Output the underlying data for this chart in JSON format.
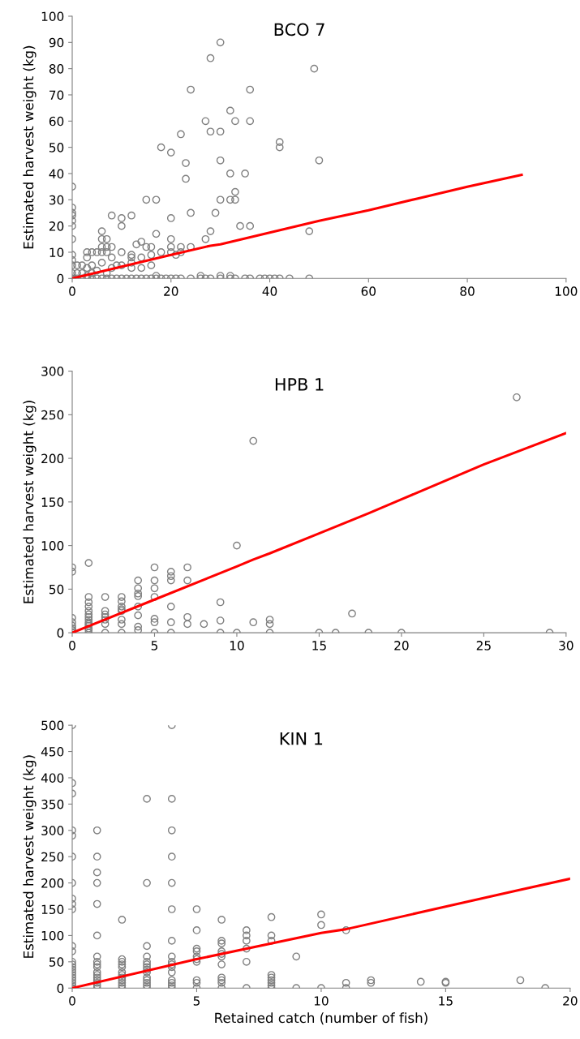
{
  "chart_data": [
    {
      "type": "scatter",
      "title": "BCO 7",
      "ylabel": "Estimated harvest weight (kg)",
      "xlim": [
        0,
        100
      ],
      "xticks": [
        0,
        20,
        40,
        60,
        80,
        100
      ],
      "ylim": [
        0,
        100
      ],
      "yticks": [
        0,
        10,
        20,
        30,
        40,
        50,
        60,
        70,
        80,
        90,
        100
      ],
      "grid": false,
      "series": [
        {
          "marker": "circle",
          "color": "#808080",
          "x": [
            0,
            0,
            0,
            0,
            0,
            0,
            0,
            0,
            0,
            0,
            0,
            0,
            28,
            30,
            49,
            24,
            36,
            32,
            27,
            33,
            36,
            28,
            30,
            22,
            42,
            42,
            18,
            20,
            30,
            50,
            23,
            32,
            35,
            23,
            33,
            32,
            33,
            30,
            15,
            17,
            8,
            12,
            10,
            20,
            24,
            29,
            10,
            34,
            36,
            6,
            28,
            48,
            17,
            27,
            20,
            6,
            7,
            14,
            13,
            20,
            22,
            24,
            16,
            6,
            7,
            8,
            15,
            4,
            5,
            6,
            7,
            3,
            10,
            18,
            20,
            22,
            12,
            16,
            21,
            8,
            12,
            14,
            3,
            12,
            6,
            16,
            10,
            9,
            4,
            2,
            1,
            8,
            14,
            12,
            3,
            5,
            1,
            2,
            4,
            7,
            3,
            1,
            2,
            3,
            4,
            5,
            6,
            7,
            8,
            9,
            10,
            11,
            12,
            13,
            14,
            15,
            16,
            17,
            18,
            19,
            20,
            21,
            22,
            24,
            26,
            27,
            28,
            30,
            32,
            33,
            35,
            36,
            38,
            39,
            40,
            41,
            42,
            44,
            48,
            17,
            26,
            30,
            32
          ],
          "values": [
            35,
            27,
            25,
            24,
            22,
            20,
            15,
            9,
            7,
            5,
            2,
            0,
            84,
            90,
            80,
            72,
            72,
            64,
            60,
            60,
            60,
            56,
            56,
            55,
            52,
            50,
            50,
            48,
            45,
            45,
            44,
            40,
            40,
            38,
            33,
            30,
            30,
            30,
            30,
            30,
            24,
            24,
            23,
            23,
            25,
            25,
            20,
            20,
            20,
            18,
            18,
            18,
            17,
            15,
            15,
            15,
            15,
            14,
            13,
            12,
            12,
            12,
            12,
            12,
            12,
            12,
            12,
            10,
            10,
            10,
            10,
            10,
            10,
            10,
            10,
            10,
            9,
            9,
            9,
            8,
            8,
            8,
            8,
            6,
            6,
            5,
            5,
            5,
            5,
            5,
            5,
            4,
            4,
            4,
            4,
            3,
            2,
            2,
            2,
            2,
            1,
            0,
            0,
            0,
            0,
            0,
            0,
            0,
            0,
            0,
            0,
            0,
            0,
            0,
            0,
            0,
            0,
            0,
            0,
            0,
            0,
            0,
            0,
            0,
            0,
            0,
            0,
            0,
            0,
            0,
            0,
            0,
            0,
            0,
            0,
            0,
            0,
            0,
            0,
            1,
            1,
            1,
            1
          ]
        },
        {
          "type": "line",
          "color": "#ff0000",
          "x": [
            0,
            10,
            20,
            28,
            30,
            40,
            50,
            60,
            70,
            80,
            91
          ],
          "values": [
            0,
            4.5,
            9,
            12.5,
            13,
            17.5,
            22,
            26,
            30.5,
            35,
            39.5
          ]
        }
      ]
    },
    {
      "type": "scatter",
      "title": "HPB 1",
      "ylabel": "Estimated harvest weight (kg)",
      "xlim": [
        0,
        30
      ],
      "xticks": [
        0,
        5,
        10,
        15,
        20,
        25,
        30
      ],
      "ylim": [
        0,
        300
      ],
      "yticks": [
        0,
        50,
        100,
        150,
        200,
        250,
        300
      ],
      "grid": false,
      "series": [
        {
          "marker": "circle",
          "color": "#808080",
          "x": [
            0,
            0,
            0,
            0,
            0,
            0,
            0,
            0,
            1,
            1,
            1,
            1,
            1,
            1,
            1,
            1,
            1,
            1,
            1,
            1,
            1,
            1,
            2,
            2,
            2,
            2,
            2,
            2,
            2,
            3,
            3,
            3,
            3,
            3,
            3,
            3,
            3,
            4,
            4,
            4,
            4,
            4,
            4,
            4,
            4,
            5,
            5,
            5,
            5,
            5,
            5,
            5,
            6,
            6,
            6,
            6,
            6,
            6,
            7,
            7,
            7,
            7,
            8,
            9,
            9,
            9,
            10,
            10,
            11,
            11,
            12,
            12,
            12,
            15,
            16,
            17,
            18,
            20,
            27,
            29
          ],
          "values": [
            75,
            70,
            17,
            12,
            8,
            5,
            3,
            0,
            80,
            41,
            35,
            30,
            25,
            21,
            18,
            15,
            12,
            10,
            8,
            5,
            3,
            0,
            41,
            25,
            21,
            18,
            15,
            10,
            0,
            41,
            36,
            30,
            27,
            25,
            15,
            10,
            0,
            60,
            51,
            45,
            42,
            30,
            20,
            7,
            3,
            75,
            60,
            51,
            41,
            16,
            12,
            0,
            70,
            65,
            60,
            30,
            12,
            0,
            75,
            60,
            18,
            10,
            10,
            35,
            14,
            0,
            100,
            0,
            220,
            12,
            15,
            10,
            0,
            0,
            0,
            22,
            0,
            0,
            270,
            0
          ]
        },
        {
          "type": "line",
          "color": "#ff0000",
          "x": [
            0,
            5,
            10,
            11,
            12,
            15,
            18,
            20,
            25,
            30
          ],
          "values": [
            0,
            38,
            76,
            84,
            91,
            114,
            137,
            153,
            193,
            229
          ]
        }
      ]
    },
    {
      "type": "scatter",
      "title": "KIN 1",
      "xlabel": "Retained catch (number of fish)",
      "ylabel": "Estimated harvest weight (kg)",
      "xlim": [
        0,
        20
      ],
      "xticks": [
        0,
        5,
        10,
        15,
        20
      ],
      "ylim": [
        0,
        500
      ],
      "yticks": [
        0,
        50,
        100,
        150,
        200,
        250,
        300,
        350,
        400,
        450,
        500
      ],
      "grid": false,
      "series": [
        {
          "marker": "circle",
          "color": "#808080",
          "x": [
            0,
            0,
            0,
            0,
            0,
            0,
            0,
            0,
            0,
            0,
            0,
            0,
            0,
            0,
            0,
            0,
            0,
            0,
            0,
            0,
            0,
            0,
            0,
            1,
            1,
            1,
            1,
            1,
            1,
            1,
            1,
            1,
            1,
            1,
            1,
            1,
            1,
            1,
            1,
            1,
            2,
            2,
            2,
            2,
            2,
            2,
            2,
            2,
            2,
            2,
            2,
            2,
            3,
            3,
            3,
            3,
            3,
            3,
            3,
            3,
            3,
            3,
            3,
            3,
            3,
            3,
            4,
            4,
            4,
            4,
            4,
            4,
            4,
            4,
            4,
            4,
            4,
            4,
            4,
            4,
            4,
            4,
            5,
            5,
            5,
            5,
            5,
            5,
            5,
            5,
            5,
            5,
            6,
            6,
            6,
            6,
            6,
            6,
            6,
            6,
            6,
            6,
            6,
            7,
            7,
            7,
            7,
            7,
            7,
            8,
            8,
            8,
            8,
            8,
            8,
            8,
            8,
            8,
            9,
            9,
            10,
            10,
            10,
            11,
            11,
            11,
            12,
            12,
            14,
            15,
            15,
            18,
            19
          ],
          "values": [
            500,
            390,
            370,
            300,
            290,
            250,
            200,
            170,
            160,
            150,
            80,
            70,
            50,
            45,
            40,
            35,
            30,
            25,
            20,
            15,
            10,
            5,
            0,
            300,
            250,
            220,
            200,
            160,
            100,
            60,
            50,
            45,
            40,
            30,
            25,
            20,
            15,
            10,
            5,
            0,
            130,
            55,
            50,
            45,
            40,
            30,
            25,
            20,
            15,
            10,
            5,
            0,
            360,
            200,
            80,
            60,
            50,
            45,
            40,
            35,
            30,
            20,
            15,
            10,
            5,
            0,
            500,
            360,
            300,
            250,
            200,
            150,
            90,
            60,
            50,
            45,
            40,
            30,
            15,
            10,
            5,
            0,
            150,
            110,
            75,
            70,
            60,
            55,
            50,
            15,
            10,
            0,
            130,
            90,
            85,
            70,
            65,
            60,
            45,
            20,
            15,
            10,
            0,
            110,
            100,
            90,
            75,
            50,
            0,
            135,
            100,
            90,
            25,
            20,
            15,
            10,
            5,
            0,
            60,
            0,
            140,
            120,
            0,
            110,
            10,
            0,
            15,
            10,
            12,
            12,
            10,
            15,
            0
          ]
        },
        {
          "type": "line",
          "color": "#ff0000",
          "x": [
            0,
            5,
            10,
            11,
            15,
            18,
            20
          ],
          "values": [
            0,
            55,
            105,
            112,
            155,
            187,
            208
          ]
        }
      ]
    }
  ]
}
